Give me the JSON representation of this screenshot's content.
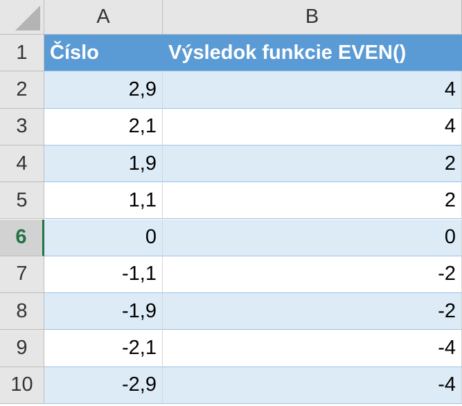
{
  "sheet": {
    "columns": [
      "A",
      "B"
    ],
    "selected_row": 6,
    "rows": [
      {
        "number": 1,
        "cells": [
          "Číslo",
          "Výsledok funkcie EVEN()"
        ]
      },
      {
        "number": 2,
        "cells": [
          "2,9",
          "4"
        ]
      },
      {
        "number": 3,
        "cells": [
          "2,1",
          "4"
        ]
      },
      {
        "number": 4,
        "cells": [
          "1,9",
          "2"
        ]
      },
      {
        "number": 5,
        "cells": [
          "1,1",
          "2"
        ]
      },
      {
        "number": 6,
        "cells": [
          "0",
          "0"
        ]
      },
      {
        "number": 7,
        "cells": [
          "-1,1",
          "-2"
        ]
      },
      {
        "number": 8,
        "cells": [
          "-1,9",
          "-2"
        ]
      },
      {
        "number": 9,
        "cells": [
          "-2,1",
          "-4"
        ]
      },
      {
        "number": 10,
        "cells": [
          "-2,9",
          "-4"
        ]
      }
    ]
  }
}
